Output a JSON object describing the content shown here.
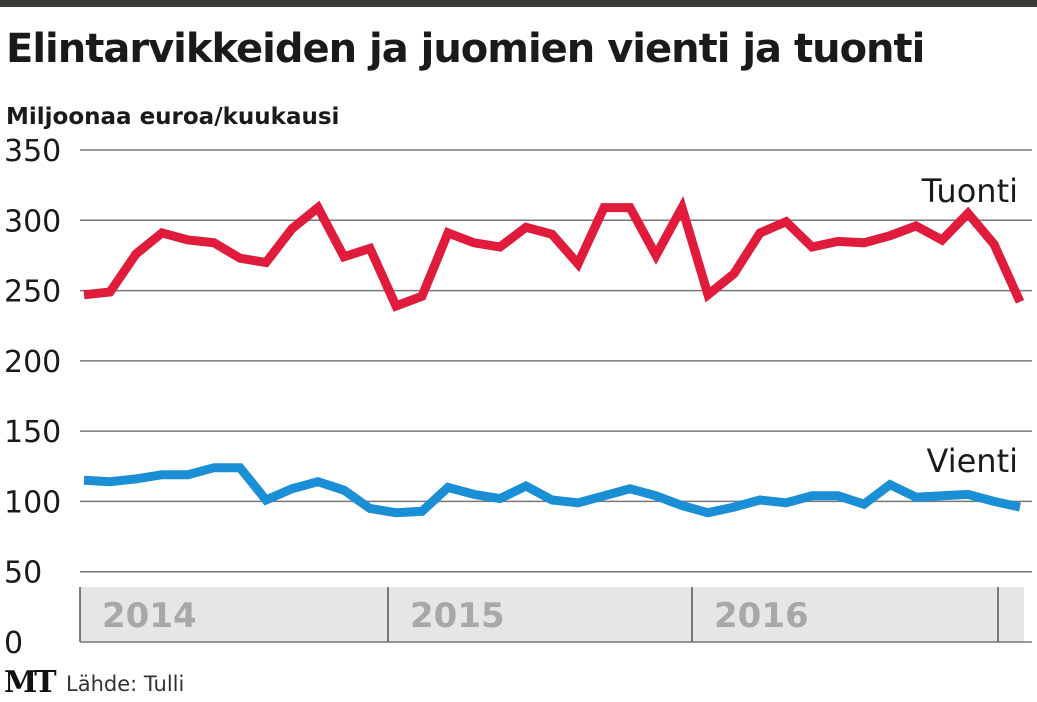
{
  "title": "Elintarvikkeiden ja juomien vienti ja tuonti",
  "subtitle": "Miljoonaa euroa/kuukausi",
  "source_logo": "MT",
  "source": "Lähde: Tulli",
  "colors": {
    "tuonti": "#e01b3c",
    "vienti": "#1a8fd6",
    "grid": "#777777",
    "yearband": "#e6e6e6",
    "yeartext": "#a8a8a8"
  },
  "chart_data": {
    "type": "line",
    "ylabel": "Miljoonaa euroa/kuukausi",
    "ylim": [
      0,
      350
    ],
    "yticks": [
      0,
      50,
      100,
      150,
      200,
      250,
      300,
      350
    ],
    "years": [
      "2014",
      "2015",
      "2016"
    ],
    "x_months": 36,
    "series": [
      {
        "name": "Tuonti",
        "values": [
          247,
          249,
          276,
          291,
          286,
          284,
          273,
          270,
          294,
          309,
          274,
          280,
          239,
          246,
          291,
          284,
          281,
          295,
          290,
          269,
          309,
          309,
          275,
          309,
          247,
          262,
          291,
          299,
          281,
          285,
          284,
          289,
          296,
          286,
          305,
          283,
          242
        ]
      },
      {
        "name": "Vienti",
        "values": [
          115,
          114,
          116,
          119,
          119,
          124,
          124,
          101,
          109,
          114,
          108,
          95,
          92,
          93,
          110,
          105,
          102,
          111,
          101,
          99,
          104,
          109,
          104,
          97,
          92,
          96,
          101,
          99,
          104,
          104,
          98,
          112,
          103,
          104,
          105,
          100,
          96
        ]
      }
    ]
  }
}
